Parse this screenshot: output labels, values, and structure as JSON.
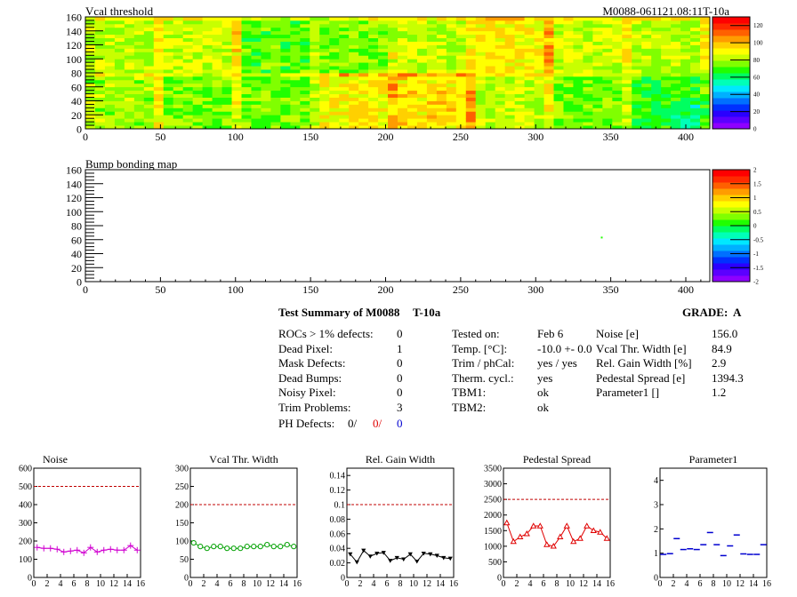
{
  "colors": {
    "palette": [
      "#8e00ff",
      "#5b00ff",
      "#2a00ff",
      "#0030ff",
      "#0070ff",
      "#00b0ff",
      "#00e8ff",
      "#00ffb8",
      "#00ff60",
      "#20ff00",
      "#80ff00",
      "#c8ff00",
      "#ffff00",
      "#ffd000",
      "#ff9c00",
      "#ff6000",
      "#ff2a00",
      "#ff0000"
    ],
    "noise": "#d000d0",
    "vcal": "#00a000",
    "gain": "#000000",
    "pedestal": "#e00000",
    "param1": "#0000d0",
    "reference_line": "#c00000"
  },
  "map_top": {
    "title": "Vcal threshold",
    "id_label": "M0088-061121.08:11T-10a",
    "x_ticks": [
      "0",
      "50",
      "100",
      "150",
      "200",
      "250",
      "300",
      "350",
      "400"
    ],
    "y_ticks": [
      "0",
      "20",
      "40",
      "60",
      "80",
      "100",
      "120",
      "140",
      "160"
    ],
    "z_ticks": [
      "0",
      "20",
      "40",
      "60",
      "80",
      "100",
      "120"
    ]
  },
  "map_bottom": {
    "title": "Bump bonding map",
    "x_ticks": [
      "0",
      "50",
      "100",
      "150",
      "200",
      "250",
      "300",
      "350",
      "400"
    ],
    "y_ticks": [
      "0",
      "20",
      "40",
      "60",
      "80",
      "100",
      "120",
      "140",
      "160"
    ],
    "z_ticks": [
      "-2",
      "-1.5",
      "-1",
      "-0.5",
      "0",
      "0.5",
      "1",
      "1.5",
      "2"
    ]
  },
  "summary": {
    "title": "Test Summary of M0088",
    "test_id": "T-10a",
    "grade_label": "GRADE:",
    "grade": "A",
    "col1": [
      {
        "label": "ROCs > 1% defects:",
        "value": "0"
      },
      {
        "label": "Dead Pixel:",
        "value": "1"
      },
      {
        "label": "Mask Defects:",
        "value": "0"
      },
      {
        "label": "Dead Bumps:",
        "value": "0"
      },
      {
        "label": "Noisy Pixel:",
        "value": "0"
      },
      {
        "label": "Trim Problems:",
        "value": "3"
      }
    ],
    "ph_defects": {
      "label": "PH Defects:",
      "v1": "0/",
      "v2": "0/",
      "v3": "0"
    },
    "col2": [
      {
        "label": "Tested on:",
        "value": "Feb 6"
      },
      {
        "label": "Temp. [°C]:",
        "value": "-10.0 +- 0.0"
      },
      {
        "label": "Trim / phCal:",
        "value": "yes / yes"
      },
      {
        "label": "Therm. cycl.:",
        "value": "yes"
      },
      {
        "label": "TBM1:",
        "value": "ok"
      },
      {
        "label": "TBM2:",
        "value": "ok"
      }
    ],
    "col3": [
      {
        "label": "Noise [e]",
        "value": "156.0"
      },
      {
        "label": "Vcal Thr. Width [e]",
        "value": "84.9"
      },
      {
        "label": "Rel. Gain Width [%]",
        "value": "2.9"
      },
      {
        "label": "Pedestal Spread [e]",
        "value": "1394.3"
      },
      {
        "label": "Parameter1 []",
        "value": "1.2"
      }
    ]
  },
  "chart_data": [
    {
      "type": "heatmap",
      "title": "Vcal threshold",
      "annotation": "M0088-061121.08:11T-10a",
      "xlim": [
        0,
        416
      ],
      "ylim": [
        0,
        160
      ],
      "zlim": [
        0,
        130
      ],
      "grid": false,
      "legend": "color scale right",
      "roc_layout": {
        "columns": 8,
        "rows": 2,
        "roc_width": 52,
        "roc_height": 80
      },
      "roc_mean_threshold": {
        "top": [
          82,
          84,
          72,
          76,
          83,
          92,
          83,
          82
        ],
        "bottom": [
          80,
          76,
          74,
          92,
          95,
          82,
          74,
          68
        ]
      }
    },
    {
      "type": "heatmap",
      "title": "Bump bonding map",
      "xlim": [
        0,
        416
      ],
      "ylim": [
        0,
        160
      ],
      "zlim": [
        -2,
        2
      ],
      "grid": false,
      "legend": "color scale right",
      "points": [
        {
          "x": 344,
          "y": 63,
          "z": 0.2
        }
      ]
    },
    {
      "type": "line",
      "title": "Noise",
      "x": [
        0,
        1,
        2,
        3,
        4,
        5,
        6,
        7,
        8,
        9,
        10,
        11,
        12,
        13,
        14,
        15
      ],
      "values": [
        165,
        160,
        160,
        155,
        140,
        145,
        150,
        135,
        165,
        140,
        150,
        155,
        150,
        150,
        175,
        150
      ],
      "reference": 500,
      "xlim": [
        0,
        16
      ],
      "ylim": [
        0,
        600
      ],
      "x_ticks": [
        "0",
        "2",
        "4",
        "6",
        "8",
        "10",
        "12",
        "14",
        "16"
      ],
      "y_ticks": [
        "0",
        "100",
        "200",
        "300",
        "400",
        "500",
        "600"
      ],
      "marker": "cross"
    },
    {
      "type": "line",
      "title": "Vcal Thr. Width",
      "x": [
        0,
        1,
        2,
        3,
        4,
        5,
        6,
        7,
        8,
        9,
        10,
        11,
        12,
        13,
        14,
        15
      ],
      "values": [
        95,
        85,
        80,
        85,
        85,
        80,
        80,
        80,
        85,
        85,
        85,
        90,
        85,
        85,
        90,
        85
      ],
      "reference": 200,
      "xlim": [
        0,
        16
      ],
      "ylim": [
        0,
        300
      ],
      "x_ticks": [
        "0",
        "2",
        "4",
        "6",
        "8",
        "10",
        "12",
        "14",
        "16"
      ],
      "y_ticks": [
        "0",
        "50",
        "100",
        "150",
        "200",
        "250",
        "300"
      ],
      "marker": "circle"
    },
    {
      "type": "line",
      "title": "Rel. Gain Width",
      "x": [
        0,
        1,
        2,
        3,
        4,
        5,
        6,
        7,
        8,
        9,
        10,
        11,
        12,
        13,
        14,
        15
      ],
      "values": [
        0.032,
        0.021,
        0.037,
        0.029,
        0.033,
        0.034,
        0.023,
        0.027,
        0.025,
        0.032,
        0.022,
        0.033,
        0.032,
        0.03,
        0.027,
        0.026
      ],
      "reference": 0.1,
      "xlim": [
        0,
        16
      ],
      "ylim": [
        0,
        0.15
      ],
      "x_ticks": [
        "0",
        "2",
        "4",
        "6",
        "8",
        "10",
        "12",
        "14",
        "16"
      ],
      "y_ticks": [
        "0",
        "0.02",
        "0.04",
        "0.06",
        "0.08",
        "0.1",
        "0.12",
        "0.14"
      ],
      "marker": "triangle-down"
    },
    {
      "type": "line",
      "title": "Pedestal Spread",
      "x": [
        0,
        1,
        2,
        3,
        4,
        5,
        6,
        7,
        8,
        9,
        10,
        11,
        12,
        13,
        14,
        15
      ],
      "values": [
        1750,
        1150,
        1300,
        1400,
        1650,
        1650,
        1050,
        1000,
        1300,
        1650,
        1150,
        1250,
        1650,
        1500,
        1450,
        1250
      ],
      "reference": 2500,
      "xlim": [
        0,
        16
      ],
      "ylim": [
        0,
        3500
      ],
      "x_ticks": [
        "0",
        "2",
        "4",
        "6",
        "8",
        "10",
        "12",
        "14",
        "16"
      ],
      "y_ticks": [
        "0",
        "500",
        "1000",
        "1500",
        "2000",
        "2500",
        "3000",
        "3500"
      ],
      "marker": "triangle-up"
    },
    {
      "type": "scatter",
      "title": "Parameter1",
      "x": [
        0,
        1,
        2,
        3,
        4,
        5,
        6,
        7,
        8,
        9,
        10,
        11,
        12,
        13,
        14,
        15
      ],
      "values": [
        0.95,
        0.98,
        1.6,
        1.15,
        1.18,
        1.15,
        1.35,
        1.85,
        1.35,
        0.9,
        1.3,
        1.75,
        0.97,
        0.95,
        0.95,
        1.35
      ],
      "xlim": [
        0,
        16
      ],
      "ylim": [
        0,
        4.5
      ],
      "x_ticks": [
        "0",
        "2",
        "4",
        "6",
        "8",
        "10",
        "12",
        "14",
        "16"
      ],
      "y_ticks": [
        "0",
        "1",
        "2",
        "3",
        "4"
      ],
      "marker": "hbar"
    }
  ]
}
